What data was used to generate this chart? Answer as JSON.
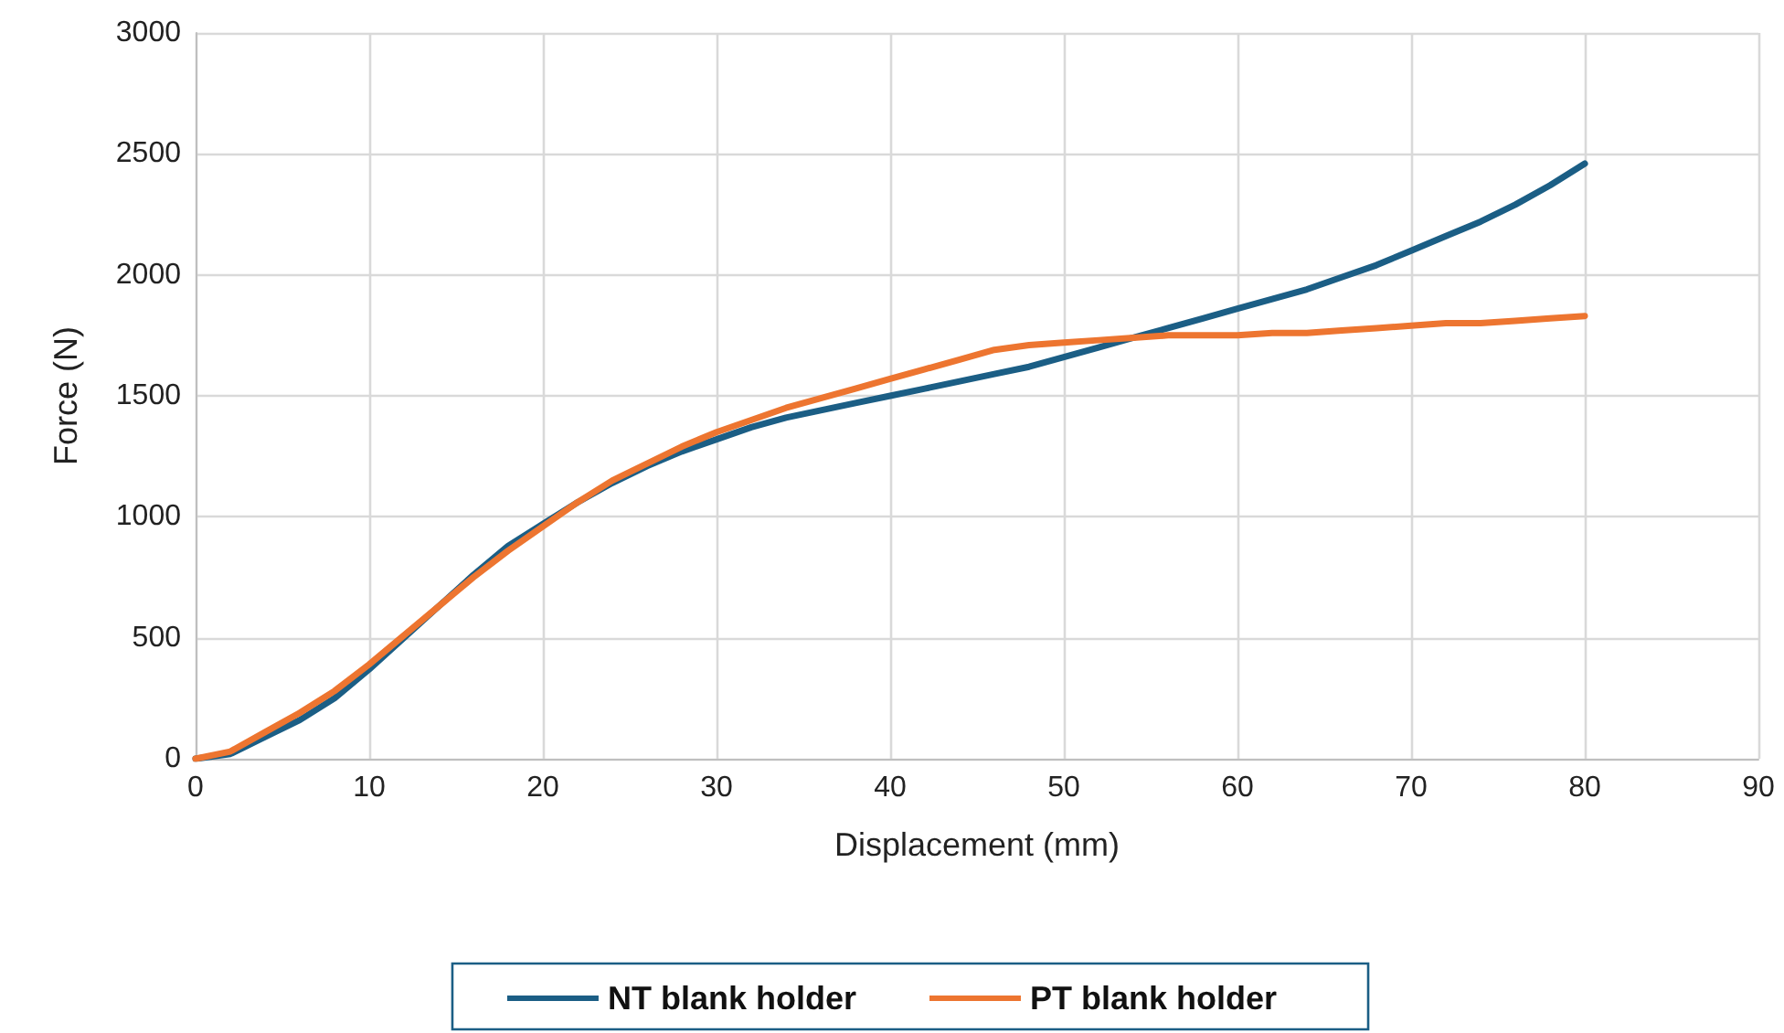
{
  "chart_data": {
    "type": "line",
    "xlabel": "Displacement (mm)",
    "ylabel": "Force (N)",
    "xlim": [
      0,
      90
    ],
    "xticks": [
      0,
      10,
      20,
      30,
      40,
      50,
      60,
      70,
      80,
      90
    ],
    "ylim": [
      0,
      3000
    ],
    "yticks": [
      0,
      500,
      1000,
      1500,
      2000,
      2500,
      3000
    ],
    "grid": true,
    "legend": "bottom",
    "marker": "none",
    "line_style": "solid",
    "x": [
      0,
      2,
      4,
      6,
      8,
      10,
      12,
      14,
      16,
      18,
      20,
      22,
      24,
      26,
      28,
      30,
      32,
      34,
      36,
      38,
      40,
      42,
      44,
      46,
      48,
      50,
      52,
      54,
      56,
      58,
      60,
      62,
      64,
      66,
      68,
      70,
      72,
      74,
      76,
      78,
      80
    ],
    "series": [
      {
        "name": "NT blank holder",
        "color": "#1b5e85",
        "values": [
          0,
          20,
          90,
          160,
          250,
          370,
          500,
          630,
          760,
          880,
          970,
          1060,
          1140,
          1210,
          1270,
          1320,
          1370,
          1410,
          1440,
          1470,
          1500,
          1530,
          1560,
          1590,
          1620,
          1660,
          1700,
          1740,
          1780,
          1820,
          1860,
          1900,
          1940,
          1990,
          2040,
          2100,
          2160,
          2220,
          2290,
          2370,
          2460
        ]
      },
      {
        "name": "PT blank holder",
        "color": "#ed7530",
        "values": [
          0,
          30,
          110,
          190,
          280,
          390,
          510,
          630,
          750,
          860,
          960,
          1060,
          1150,
          1220,
          1290,
          1350,
          1400,
          1450,
          1490,
          1530,
          1570,
          1610,
          1650,
          1690,
          1710,
          1720,
          1730,
          1740,
          1750,
          1750,
          1750,
          1760,
          1760,
          1770,
          1780,
          1790,
          1800,
          1800,
          1810,
          1820,
          1830
        ]
      }
    ]
  }
}
